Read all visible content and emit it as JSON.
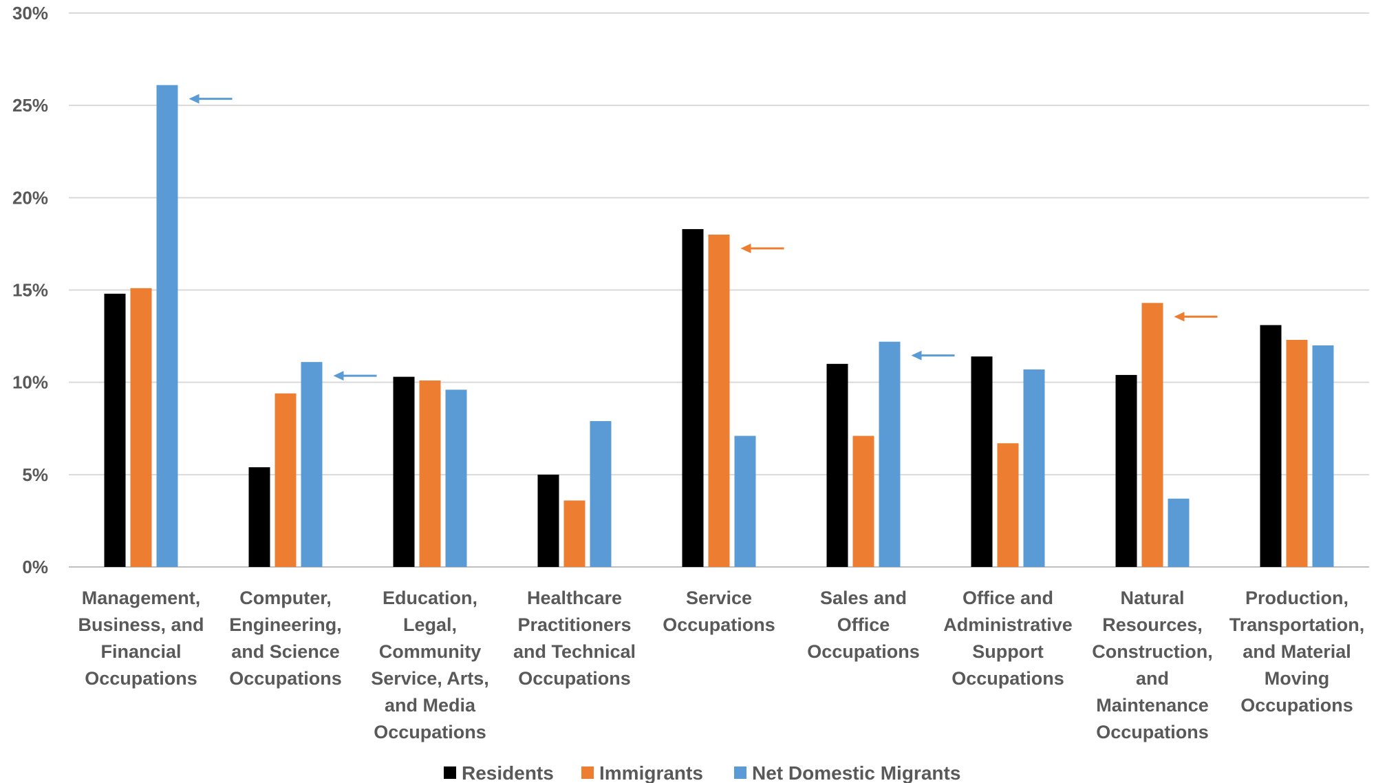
{
  "chart_data": {
    "type": "bar",
    "categories": [
      [
        "Management,",
        "Business, and",
        "Financial",
        "Occupations"
      ],
      [
        "Computer,",
        "Engineering,",
        "and Science",
        "Occupations"
      ],
      [
        "Education,",
        "Legal,",
        "Community",
        "Service, Arts,",
        "and Media",
        "Occupations"
      ],
      [
        "Healthcare",
        "Practitioners",
        "and Technical",
        "Occupations"
      ],
      [
        "Service",
        "Occupations"
      ],
      [
        "Sales and",
        "Office",
        "Occupations"
      ],
      [
        "Office and",
        "Administrative",
        "Support",
        "Occupations"
      ],
      [
        "Natural",
        "Resources,",
        "Construction,",
        "and",
        "Maintenance",
        "Occupations"
      ],
      [
        "Production,",
        "Transportation,",
        "and Material",
        "Moving",
        "Occupations"
      ]
    ],
    "series": [
      {
        "name": "Residents",
        "color": "#000000",
        "values": [
          14.8,
          5.4,
          10.3,
          5.0,
          18.3,
          11.0,
          11.4,
          10.4,
          13.1
        ]
      },
      {
        "name": "Immigrants",
        "color": "#ED7D31",
        "values": [
          15.1,
          9.4,
          10.1,
          3.6,
          18.0,
          7.1,
          6.7,
          14.3,
          12.3
        ]
      },
      {
        "name": "Net Domestic Migrants",
        "color": "#5B9BD5",
        "values": [
          26.1,
          11.1,
          9.6,
          7.9,
          7.1,
          12.2,
          10.7,
          3.7,
          12.0
        ]
      }
    ],
    "ylim": [
      0,
      30
    ],
    "yticks": [
      {
        "value": 0,
        "label": "0%"
      },
      {
        "value": 5,
        "label": "5%"
      },
      {
        "value": 10,
        "label": "10%"
      },
      {
        "value": 15,
        "label": "15%"
      },
      {
        "value": 20,
        "label": "20%"
      },
      {
        "value": 25,
        "label": "25%"
      },
      {
        "value": 30,
        "label": "30%"
      }
    ],
    "grid": true,
    "legend": "bottom-center",
    "annotations": [
      {
        "type": "arrow",
        "category_index": 0,
        "series_index": 2,
        "color": "#5B9BD5"
      },
      {
        "type": "arrow",
        "category_index": 1,
        "series_index": 2,
        "color": "#5B9BD5"
      },
      {
        "type": "arrow",
        "category_index": 4,
        "series_index": 1,
        "color": "#ED7D31"
      },
      {
        "type": "arrow",
        "category_index": 5,
        "series_index": 2,
        "color": "#5B9BD5"
      },
      {
        "type": "arrow",
        "category_index": 7,
        "series_index": 1,
        "color": "#ED7D31"
      }
    ]
  }
}
